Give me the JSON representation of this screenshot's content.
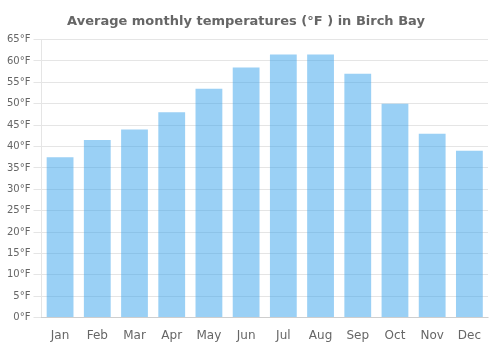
{
  "chart_data": {
    "type": "bar",
    "title": "Average monthly temperatures (°F ) in Birch Bay",
    "categories": [
      "Jan",
      "Feb",
      "Mar",
      "Apr",
      "May",
      "Jun",
      "Jul",
      "Aug",
      "Sep",
      "Oct",
      "Nov",
      "Dec"
    ],
    "values": [
      37.5,
      41.5,
      44.0,
      48.0,
      53.5,
      58.5,
      61.5,
      61.5,
      57.0,
      50.0,
      43.0,
      39.0
    ],
    "ylim": [
      0,
      65
    ],
    "yticks": [
      {
        "value": 0,
        "label": "0°F"
      },
      {
        "value": 5,
        "label": "5°F"
      },
      {
        "value": 10,
        "label": "10°F"
      },
      {
        "value": 15,
        "label": "15°F"
      },
      {
        "value": 20,
        "label": "20°F"
      },
      {
        "value": 25,
        "label": "25°F"
      },
      {
        "value": 30,
        "label": "30°F"
      },
      {
        "value": 35,
        "label": "35°F"
      },
      {
        "value": 40,
        "label": "40°F"
      },
      {
        "value": 45,
        "label": "45°F"
      },
      {
        "value": 50,
        "label": "50°F"
      },
      {
        "value": 55,
        "label": "55°F"
      },
      {
        "value": 60,
        "label": "60°F"
      },
      {
        "value": 65,
        "label": "65°F"
      }
    ],
    "grid": true
  }
}
